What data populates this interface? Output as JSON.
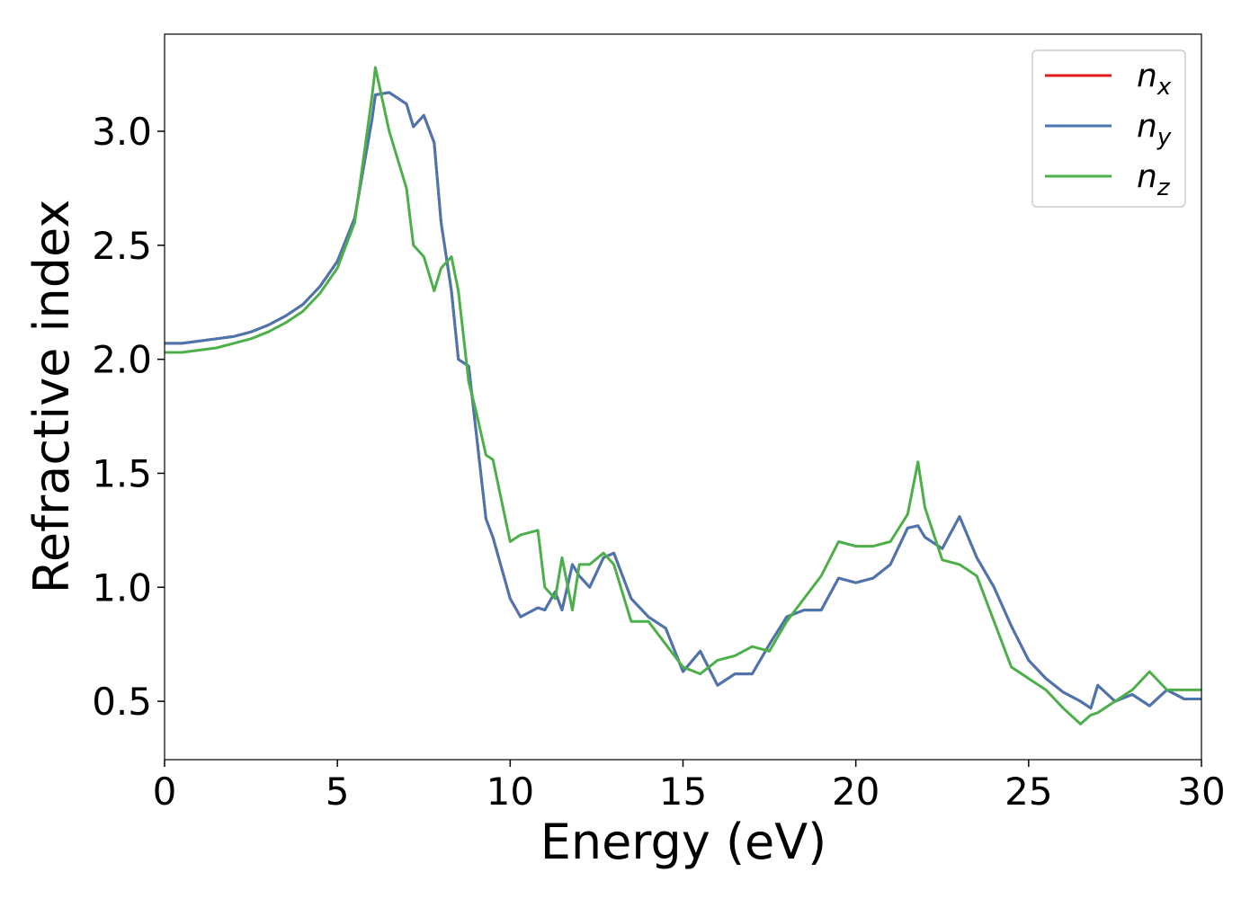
{
  "chart_data": {
    "type": "line",
    "xlabel": "Energy (eV)",
    "ylabel": "Refractive index",
    "x": [
      0,
      0.5,
      1,
      1.5,
      2,
      2.5,
      3,
      3.5,
      4,
      4.5,
      5,
      5.5,
      6,
      6.1,
      6.5,
      7,
      7.2,
      7.5,
      7.8,
      8,
      8.3,
      8.5,
      8.8,
      9,
      9.3,
      9.5,
      10,
      10.3,
      10.8,
      11,
      11.3,
      11.5,
      11.8,
      12,
      12.3,
      12.7,
      13,
      13.5,
      14,
      14.5,
      15,
      15.5,
      16,
      16.5,
      17,
      17.5,
      18,
      18.5,
      19,
      19.5,
      20,
      20.5,
      21,
      21.5,
      21.8,
      22,
      22.5,
      23,
      23.5,
      24,
      24.5,
      25,
      25.5,
      26,
      26.5,
      26.8,
      27,
      27.5,
      28,
      28.5,
      29,
      29.5,
      30
    ],
    "series": [
      {
        "name": "nx",
        "color": "#e41a1c",
        "values": [
          2.07,
          2.07,
          2.08,
          2.09,
          2.1,
          2.12,
          2.15,
          2.19,
          2.24,
          2.32,
          2.43,
          2.62,
          3.05,
          3.16,
          3.17,
          3.12,
          3.02,
          3.07,
          2.95,
          2.6,
          2.3,
          2.0,
          1.97,
          1.7,
          1.3,
          1.22,
          0.95,
          0.87,
          0.91,
          0.9,
          0.98,
          0.9,
          1.1,
          1.05,
          1.0,
          1.13,
          1.15,
          0.95,
          0.87,
          0.82,
          0.63,
          0.72,
          0.57,
          0.62,
          0.62,
          0.75,
          0.87,
          0.9,
          0.9,
          1.04,
          1.02,
          1.04,
          1.1,
          1.26,
          1.27,
          1.22,
          1.17,
          1.31,
          1.13,
          1.0,
          0.83,
          0.68,
          0.6,
          0.54,
          0.5,
          0.47,
          0.57,
          0.5,
          0.53,
          0.48,
          0.55,
          0.51,
          0.51
        ]
      },
      {
        "name": "ny",
        "color": "#4a76b0",
        "values": [
          2.07,
          2.07,
          2.08,
          2.09,
          2.1,
          2.12,
          2.15,
          2.19,
          2.24,
          2.32,
          2.43,
          2.62,
          3.05,
          3.16,
          3.17,
          3.12,
          3.02,
          3.07,
          2.95,
          2.6,
          2.3,
          2.0,
          1.97,
          1.7,
          1.3,
          1.22,
          0.95,
          0.87,
          0.91,
          0.9,
          0.98,
          0.9,
          1.1,
          1.05,
          1.0,
          1.13,
          1.15,
          0.95,
          0.87,
          0.82,
          0.63,
          0.72,
          0.57,
          0.62,
          0.62,
          0.75,
          0.87,
          0.9,
          0.9,
          1.04,
          1.02,
          1.04,
          1.1,
          1.26,
          1.27,
          1.22,
          1.17,
          1.31,
          1.13,
          1.0,
          0.83,
          0.68,
          0.6,
          0.54,
          0.5,
          0.47,
          0.57,
          0.5,
          0.53,
          0.48,
          0.55,
          0.51,
          0.51
        ]
      },
      {
        "name": "nz",
        "color": "#4daf4a",
        "values": [
          2.03,
          2.03,
          2.04,
          2.05,
          2.07,
          2.09,
          2.12,
          2.16,
          2.21,
          2.29,
          2.4,
          2.6,
          3.15,
          3.28,
          3.0,
          2.75,
          2.5,
          2.45,
          2.3,
          2.4,
          2.45,
          2.3,
          1.9,
          1.78,
          1.58,
          1.56,
          1.2,
          1.23,
          1.25,
          1.0,
          0.95,
          1.13,
          0.9,
          1.1,
          1.1,
          1.15,
          1.1,
          0.85,
          0.85,
          0.75,
          0.65,
          0.62,
          0.68,
          0.7,
          0.74,
          0.72,
          0.85,
          0.95,
          1.05,
          1.2,
          1.18,
          1.18,
          1.2,
          1.32,
          1.55,
          1.35,
          1.12,
          1.1,
          1.05,
          0.85,
          0.65,
          0.6,
          0.55,
          0.47,
          0.4,
          0.44,
          0.45,
          0.5,
          0.55,
          0.63,
          0.55,
          0.55,
          0.55
        ]
      }
    ],
    "xlim": [
      0,
      30
    ],
    "xticks": [
      0,
      5,
      10,
      15,
      20,
      25,
      30
    ],
    "ylim": [
      0.244,
      3.426
    ],
    "yticks": [
      {
        "value": 0.5,
        "label": "0.5"
      },
      {
        "value": 1,
        "label": "1.0"
      },
      {
        "value": 1.5,
        "label": "1.5"
      },
      {
        "value": 2,
        "label": "2.0"
      },
      {
        "value": 2.5,
        "label": "2.5"
      },
      {
        "value": 3,
        "label": "3.0"
      }
    ],
    "legend": "upper right",
    "grid": false
  }
}
